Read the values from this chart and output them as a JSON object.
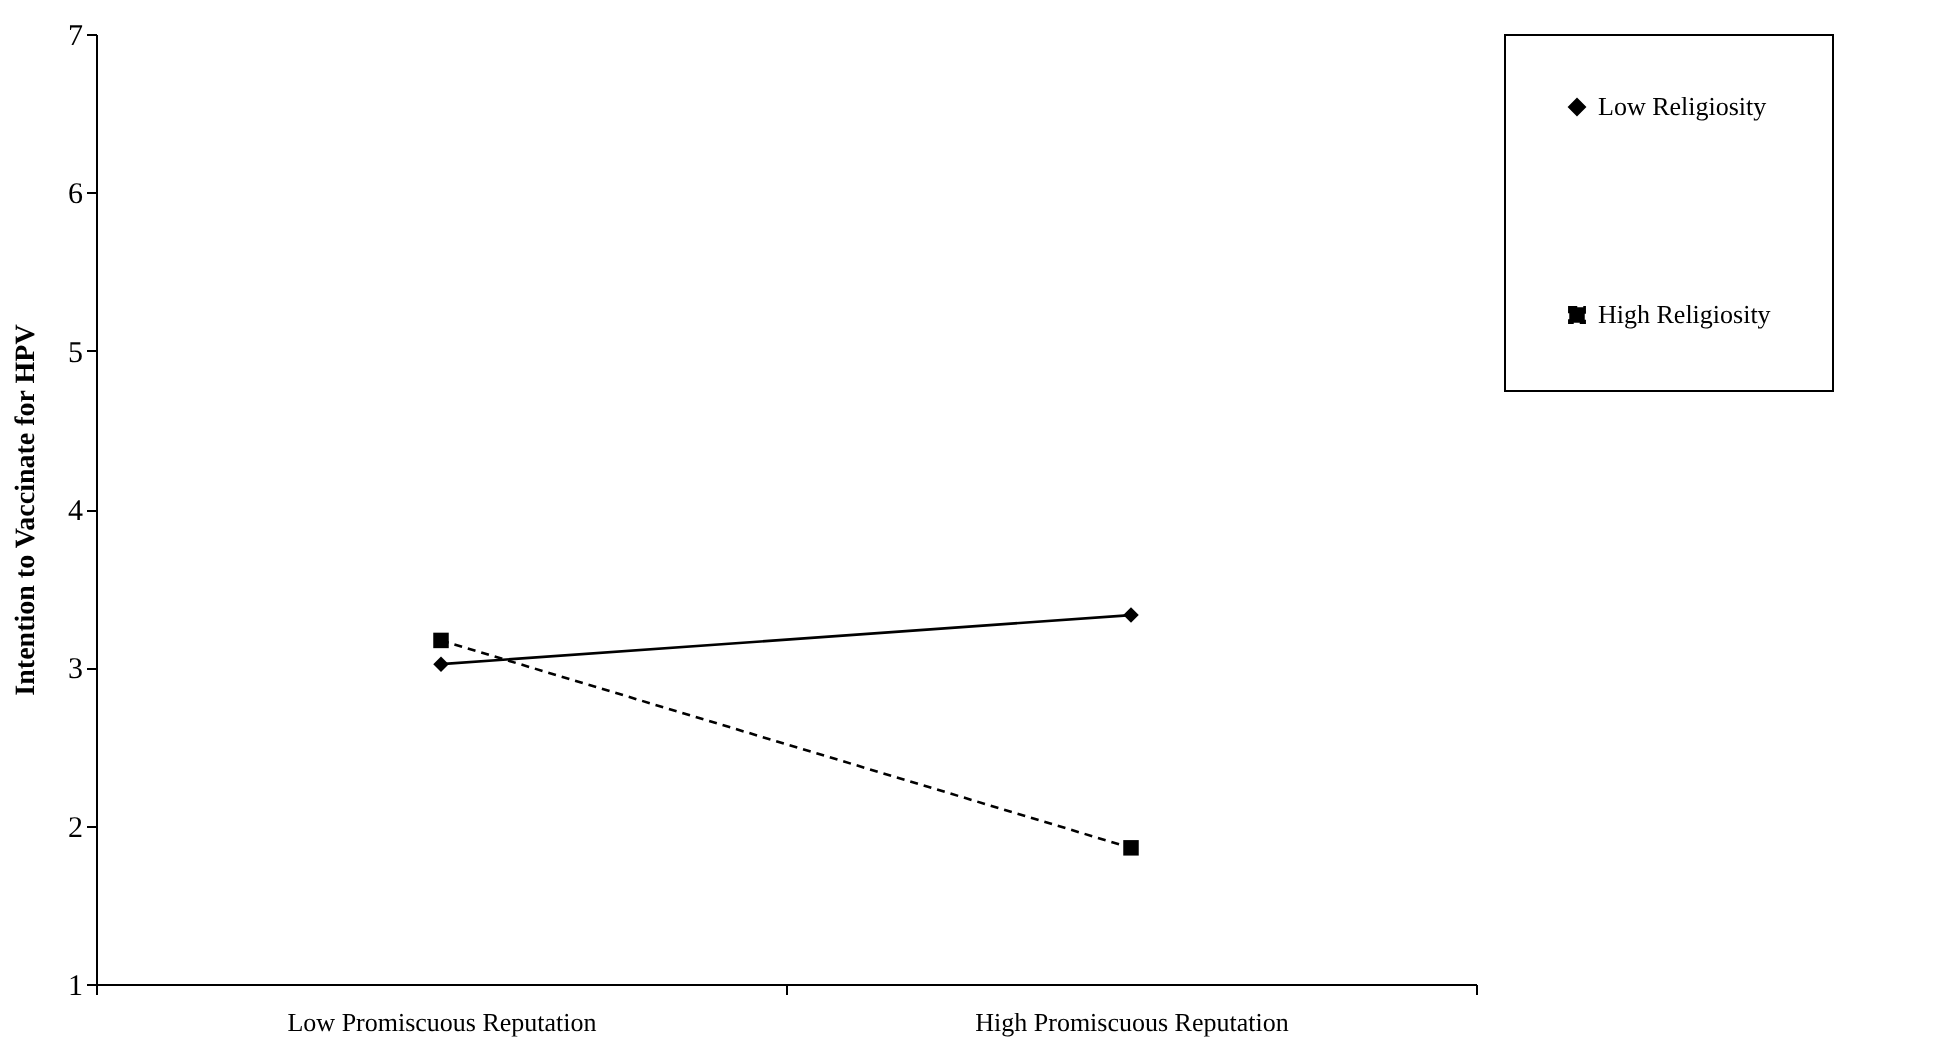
{
  "chart_data": {
    "type": "line",
    "ylabel": "Intention to Vaccinate for HPV",
    "categories": [
      "Low Promiscuous Reputation",
      "High Promiscuous Reputation"
    ],
    "series": [
      {
        "name": "Low Religiosity",
        "color": "#000000",
        "values": [
          3.02,
          3.33
        ],
        "marker": "diamond",
        "line_style": "solid"
      },
      {
        "name": "High Religiosity",
        "color": "#000000",
        "values": [
          3.17,
          1.86
        ],
        "marker": "square",
        "line_style": "dashed"
      }
    ],
    "ylim": [
      1,
      7
    ],
    "yticks": [
      1,
      2,
      3,
      4,
      5,
      6,
      7
    ],
    "grid": false,
    "legend": "right"
  }
}
